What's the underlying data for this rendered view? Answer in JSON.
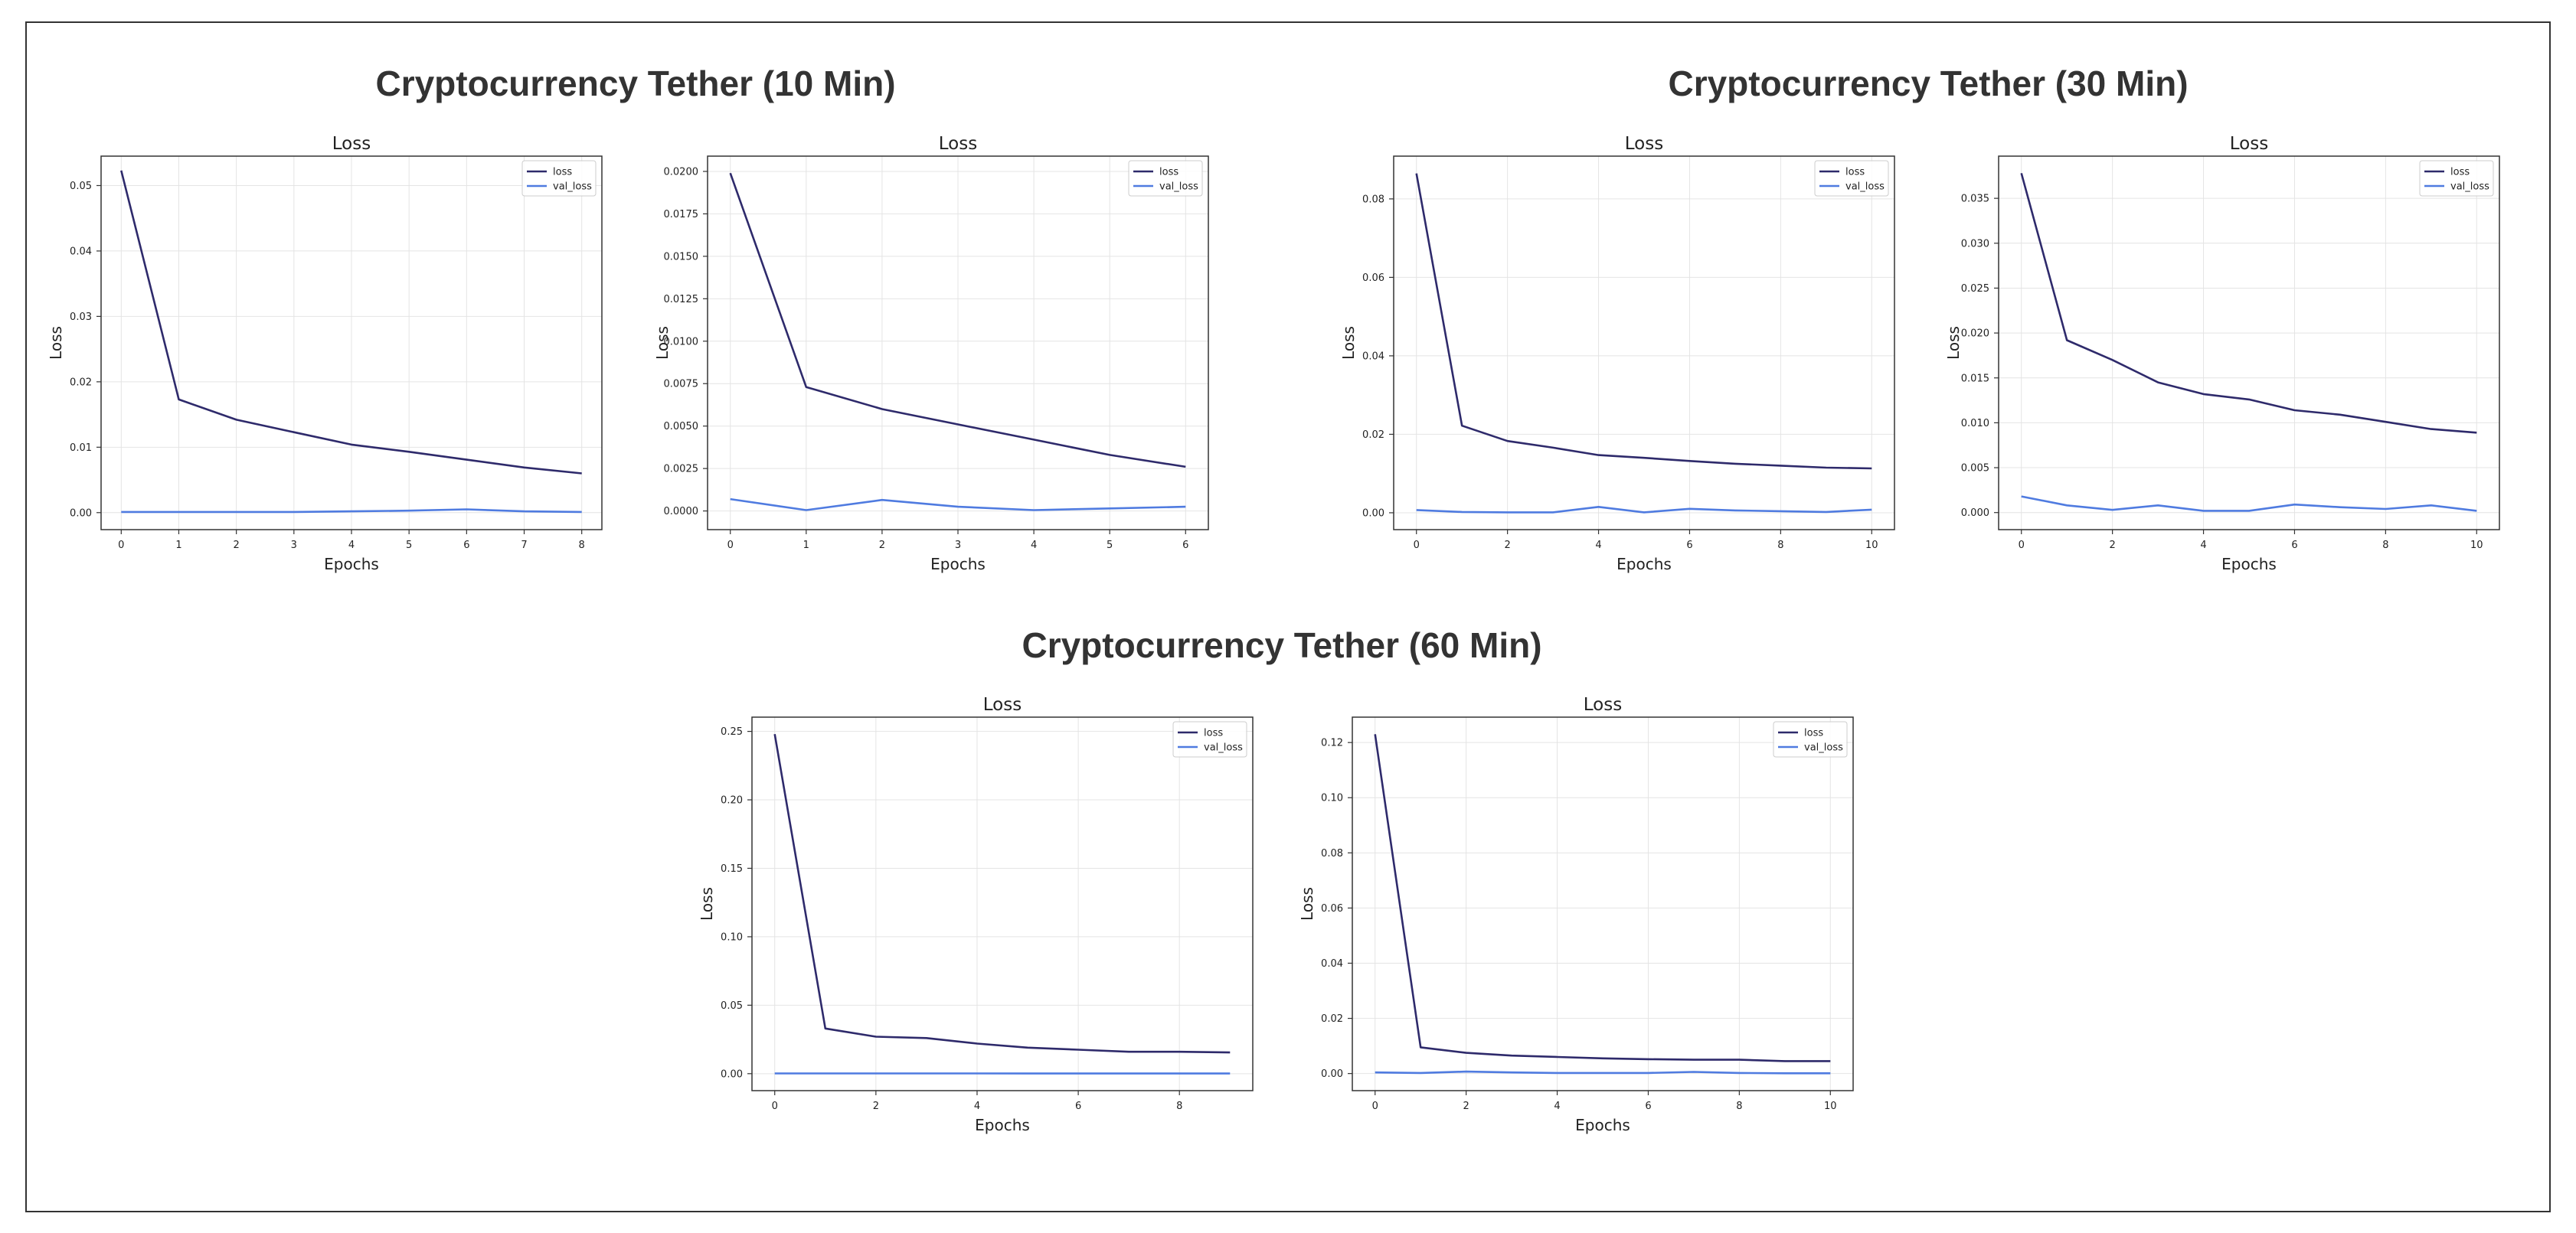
{
  "groups": [
    {
      "title": "Cryptocurrency Tether (10 Min)"
    },
    {
      "title": "Cryptocurrency Tether (30 Min)"
    },
    {
      "title": "Cryptocurrency Tether (60 Min)"
    }
  ],
  "colors": {
    "loss": "#2e2a6b",
    "val_loss": "#4f7be0",
    "grid": "#e4e4e4",
    "axis": "#333333"
  },
  "chart_data": [
    {
      "type": "line",
      "group": "Cryptocurrency Tether (10 Min)",
      "title": "Loss",
      "xlabel": "Epochs",
      "ylabel": "Loss",
      "legend": "top-right",
      "grid": true,
      "xlim": [
        -0.35,
        8.35
      ],
      "ylim": [
        -0.0026,
        0.0545
      ],
      "xticks": [
        0,
        1,
        2,
        3,
        4,
        5,
        6,
        7,
        8
      ],
      "yticks": [
        0,
        0.01,
        0.02,
        0.03,
        0.04,
        0.05
      ],
      "ytick_decimals": 2,
      "x": [
        0,
        1,
        2,
        3,
        4,
        5,
        6,
        7,
        8
      ],
      "series": [
        {
          "name": "loss",
          "values": [
            0.0523,
            0.0173,
            0.0142,
            0.0123,
            0.0104,
            0.0093,
            0.0081,
            0.0069,
            0.006
          ]
        },
        {
          "name": "val_loss",
          "values": [
            0.0001,
            0.0001,
            0.0001,
            0.0001,
            0.0002,
            0.0003,
            0.0005,
            0.0002,
            0.0001
          ]
        }
      ]
    },
    {
      "type": "line",
      "group": "Cryptocurrency Tether (10 Min)",
      "title": "Loss",
      "xlabel": "Epochs",
      "ylabel": "Loss",
      "legend": "top-right",
      "grid": true,
      "xlim": [
        -0.3,
        6.3
      ],
      "ylim": [
        -0.0011,
        0.0209
      ],
      "xticks": [
        0,
        1,
        2,
        3,
        4,
        5,
        6
      ],
      "yticks": [
        0,
        0.0025,
        0.005,
        0.0075,
        0.01,
        0.0125,
        0.015,
        0.0175,
        0.02
      ],
      "ytick_decimals": 4,
      "x": [
        0,
        1,
        2,
        3,
        4,
        5,
        6
      ],
      "series": [
        {
          "name": "loss",
          "values": [
            0.0199,
            0.0073,
            0.006,
            0.0051,
            0.0042,
            0.0033,
            0.0026
          ]
        },
        {
          "name": "val_loss",
          "values": [
            0.0007,
            5e-05,
            0.00065,
            0.00025,
            5e-05,
            0.00015,
            0.00025
          ]
        }
      ]
    },
    {
      "type": "line",
      "group": "Cryptocurrency Tether (30 Min)",
      "title": "Loss",
      "xlabel": "Epochs",
      "ylabel": "Loss",
      "legend": "top-right",
      "grid": true,
      "xlim": [
        -0.5,
        10.5
      ],
      "ylim": [
        -0.0043,
        0.0909
      ],
      "xticks": [
        0,
        2,
        4,
        6,
        8,
        10
      ],
      "yticks": [
        0,
        0.02,
        0.04,
        0.06,
        0.08
      ],
      "ytick_decimals": 2,
      "x": [
        0,
        1,
        2,
        3,
        4,
        5,
        6,
        7,
        8,
        9,
        10
      ],
      "series": [
        {
          "name": "loss",
          "values": [
            0.0865,
            0.0222,
            0.0183,
            0.0166,
            0.0147,
            0.014,
            0.0132,
            0.0125,
            0.012,
            0.0115,
            0.0113
          ]
        },
        {
          "name": "val_loss",
          "values": [
            0.0007,
            0.0002,
            0.0001,
            0.0001,
            0.0015,
            0.0001,
            0.001,
            0.0006,
            0.0004,
            0.0002,
            0.0008
          ]
        }
      ]
    },
    {
      "type": "line",
      "group": "Cryptocurrency Tether (30 Min)",
      "title": "Loss",
      "xlabel": "Epochs",
      "ylabel": "Loss",
      "legend": "top-right",
      "grid": true,
      "xlim": [
        -0.5,
        10.5
      ],
      "ylim": [
        -0.0019,
        0.0397
      ],
      "xticks": [
        0,
        2,
        4,
        6,
        8,
        10
      ],
      "yticks": [
        0,
        0.005,
        0.01,
        0.015,
        0.02,
        0.025,
        0.03,
        0.035
      ],
      "ytick_decimals": 3,
      "x": [
        0,
        1,
        2,
        3,
        4,
        5,
        6,
        7,
        8,
        9,
        10
      ],
      "series": [
        {
          "name": "loss",
          "values": [
            0.0378,
            0.0192,
            0.017,
            0.0145,
            0.0132,
            0.0126,
            0.0114,
            0.0109,
            0.0101,
            0.0093,
            0.0089
          ]
        },
        {
          "name": "val_loss",
          "values": [
            0.0018,
            0.0008,
            0.0003,
            0.0008,
            0.0002,
            0.0002,
            0.0009,
            0.0006,
            0.0004,
            0.0008,
            0.0002
          ]
        }
      ]
    },
    {
      "type": "line",
      "group": "Cryptocurrency Tether (60 Min)",
      "title": "Loss",
      "xlabel": "Epochs",
      "ylabel": "Loss",
      "legend": "top-right",
      "grid": true,
      "xlim": [
        -0.45,
        9.45
      ],
      "ylim": [
        -0.0124,
        0.2604
      ],
      "xticks": [
        0,
        2,
        4,
        6,
        8
      ],
      "yticks": [
        0,
        0.05,
        0.1,
        0.15,
        0.2,
        0.25
      ],
      "ytick_decimals": 2,
      "x": [
        0,
        1,
        2,
        3,
        4,
        5,
        6,
        7,
        8,
        9
      ],
      "series": [
        {
          "name": "loss",
          "values": [
            0.248,
            0.033,
            0.027,
            0.026,
            0.022,
            0.019,
            0.0175,
            0.016,
            0.016,
            0.0155
          ]
        },
        {
          "name": "val_loss",
          "values": [
            0.0002,
            0.0002,
            0.0002,
            0.0002,
            0.0002,
            0.0001,
            0.0001,
            0.0001,
            0.0001,
            0.0001
          ]
        }
      ]
    },
    {
      "type": "line",
      "group": "Cryptocurrency Tether (60 Min)",
      "title": "Loss",
      "xlabel": "Epochs",
      "ylabel": "Loss",
      "legend": "top-right",
      "grid": true,
      "xlim": [
        -0.5,
        10.5
      ],
      "ylim": [
        -0.0062,
        0.1292
      ],
      "xticks": [
        0,
        2,
        4,
        6,
        8,
        10
      ],
      "yticks": [
        0,
        0.02,
        0.04,
        0.06,
        0.08,
        0.1,
        0.12
      ],
      "ytick_decimals": 2,
      "x": [
        0,
        1,
        2,
        3,
        4,
        5,
        6,
        7,
        8,
        9,
        10
      ],
      "series": [
        {
          "name": "loss",
          "values": [
            0.123,
            0.0095,
            0.0075,
            0.0065,
            0.006,
            0.0055,
            0.0052,
            0.005,
            0.005,
            0.0045,
            0.0045
          ]
        },
        {
          "name": "val_loss",
          "values": [
            0.0004,
            0.0002,
            0.0007,
            0.0004,
            0.0002,
            0.0002,
            0.0002,
            0.0006,
            0.0002,
            0.0001,
            0.0001
          ]
        }
      ]
    }
  ]
}
